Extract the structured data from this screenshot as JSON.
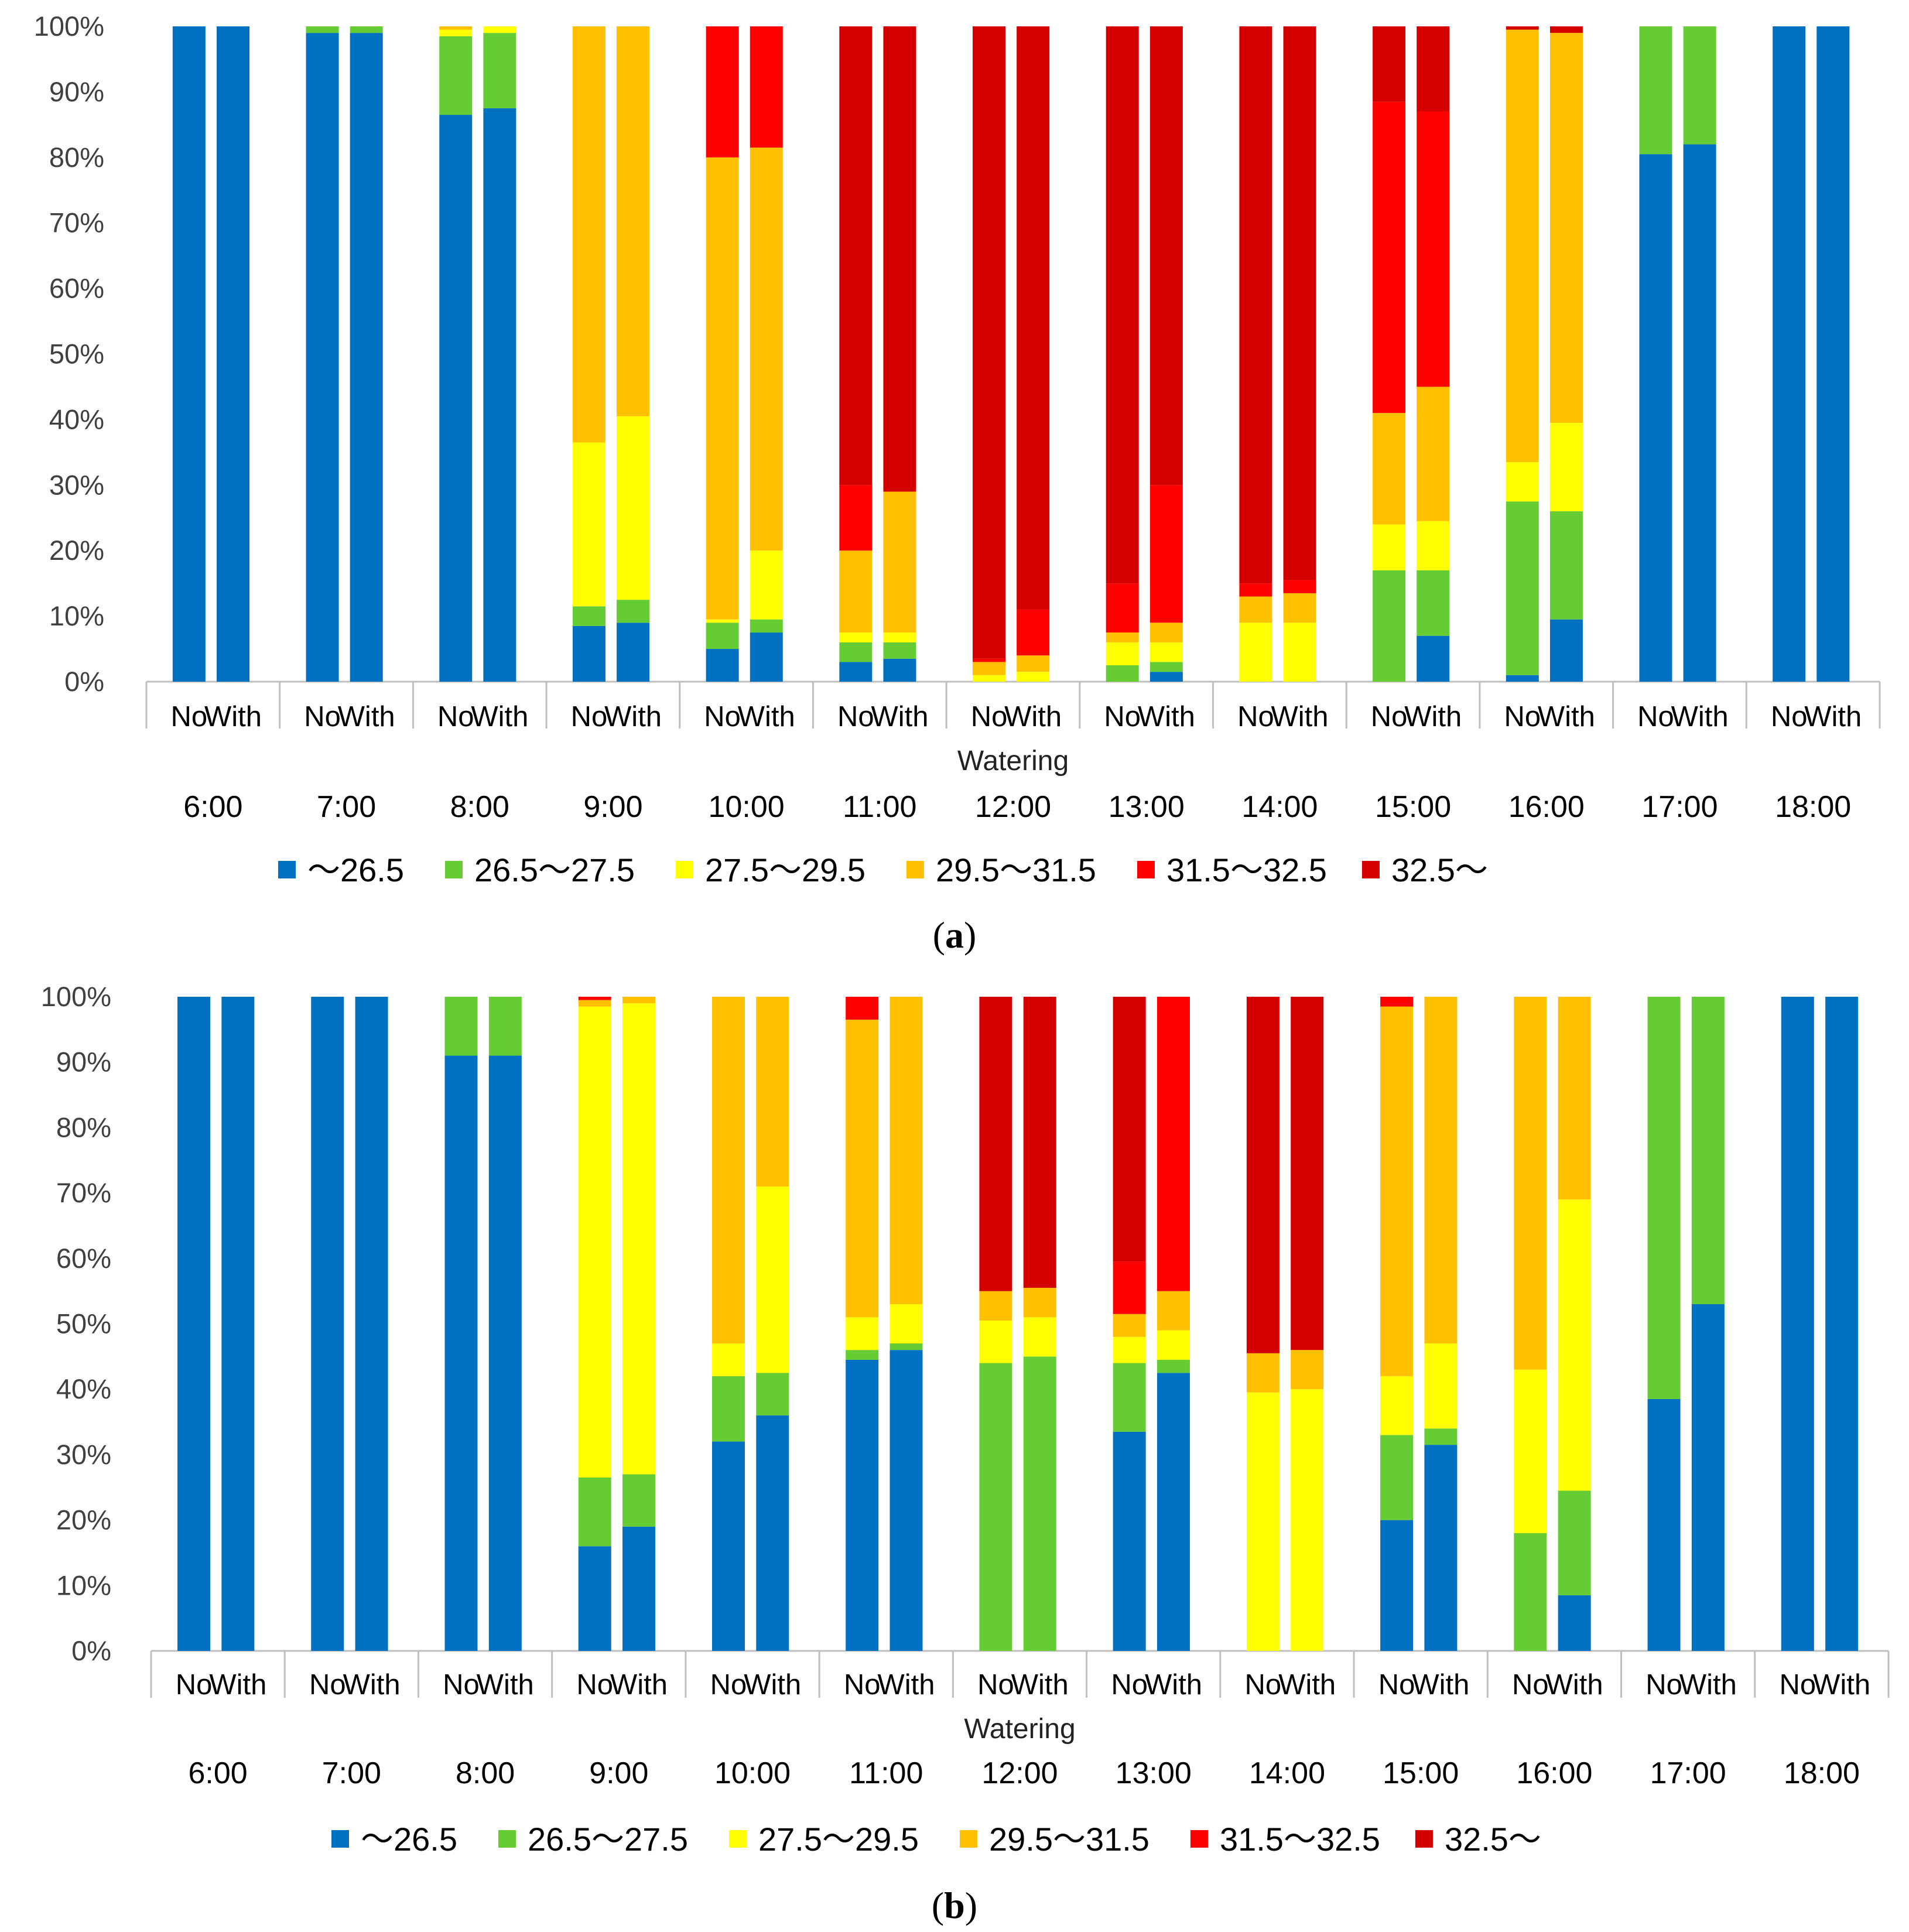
{
  "figure": {
    "x_title": "Watering",
    "bar_labels": [
      "No",
      "With"
    ]
  },
  "legend_items": [
    {
      "label": "～26.5",
      "color": "#0070c0"
    },
    {
      "label": "26.5～27.5",
      "color": "#66cc33"
    },
    {
      "label": "27.5～29.5",
      "color": "#ffff00"
    },
    {
      "label": "29.5～31.5",
      "color": "#ffc000"
    },
    {
      "label": "31.5～32.5",
      "color": "#ff0000"
    },
    {
      "label": "32.5～",
      "color": "#d40000"
    }
  ],
  "chart_data": [
    {
      "type": "bar",
      "stacked": true,
      "panel_label": "a",
      "xlabel": "Watering",
      "ylabel": "",
      "ylim": [
        0,
        100
      ],
      "y_ticks": [
        "0%",
        "10%",
        "20%",
        "30%",
        "40%",
        "50%",
        "60%",
        "70%",
        "80%",
        "90%",
        "100%"
      ],
      "groups": [
        "6:00",
        "7:00",
        "8:00",
        "9:00",
        "10:00",
        "11:00",
        "12:00",
        "13:00",
        "14:00",
        "15:00",
        "16:00",
        "17:00",
        "18:00"
      ],
      "bars_per_group": [
        "No",
        "With"
      ],
      "series_names": [
        "～26.5",
        "26.5～27.5",
        "27.5～29.5",
        "29.5～31.5",
        "31.5～32.5",
        "32.5～"
      ],
      "values": [
        [
          [
            100,
            0,
            0,
            0,
            0,
            0
          ],
          [
            100,
            0,
            0,
            0,
            0,
            0
          ]
        ],
        [
          [
            99,
            1,
            0,
            0,
            0,
            0
          ],
          [
            99,
            1,
            0,
            0,
            0,
            0
          ]
        ],
        [
          [
            86.5,
            12,
            1,
            0.5,
            0,
            0
          ],
          [
            87.5,
            11.5,
            1,
            0,
            0,
            0
          ]
        ],
        [
          [
            8.5,
            3,
            25,
            63.5,
            0,
            0
          ],
          [
            9,
            3.5,
            28,
            59.5,
            0,
            0
          ]
        ],
        [
          [
            5,
            4,
            0.5,
            70.5,
            20,
            0
          ],
          [
            7.5,
            2,
            10.5,
            61.5,
            18.5,
            0
          ]
        ],
        [
          [
            3,
            3,
            1.5,
            12.5,
            10,
            70
          ],
          [
            3.5,
            2.5,
            1.5,
            21.5,
            0,
            71
          ]
        ],
        [
          [
            0,
            0,
            1,
            2,
            0.5,
            96.5
          ],
          [
            0,
            0,
            1.5,
            2.5,
            7,
            89
          ]
        ],
        [
          [
            0,
            2.5,
            3.5,
            1.5,
            7.5,
            85
          ],
          [
            1.5,
            1.5,
            3,
            3,
            21,
            70
          ]
        ],
        [
          [
            0,
            0,
            9,
            4,
            2,
            85
          ],
          [
            0,
            0,
            9,
            4.5,
            2,
            84.5
          ]
        ],
        [
          [
            0,
            17,
            7,
            17,
            47.5,
            11.5
          ],
          [
            7,
            10,
            7.5,
            20.5,
            42,
            13
          ]
        ],
        [
          [
            1,
            26.5,
            6,
            66,
            0,
            0.5
          ],
          [
            9.5,
            16.5,
            13.5,
            59.5,
            0,
            1
          ]
        ],
        [
          [
            80.5,
            19.5,
            0,
            0,
            0,
            0
          ],
          [
            82,
            18,
            0,
            0,
            0,
            0
          ]
        ],
        [
          [
            100,
            0,
            0,
            0,
            0,
            0
          ],
          [
            100,
            0,
            0,
            0,
            0,
            0
          ]
        ]
      ]
    },
    {
      "type": "bar",
      "stacked": true,
      "panel_label": "b",
      "xlabel": "Watering",
      "ylabel": "",
      "ylim": [
        0,
        100
      ],
      "y_ticks": [
        "0%",
        "10%",
        "20%",
        "30%",
        "40%",
        "50%",
        "60%",
        "70%",
        "80%",
        "90%",
        "100%"
      ],
      "groups": [
        "6:00",
        "7:00",
        "8:00",
        "9:00",
        "10:00",
        "11:00",
        "12:00",
        "13:00",
        "14:00",
        "15:00",
        "16:00",
        "17:00",
        "18:00"
      ],
      "bars_per_group": [
        "No",
        "With"
      ],
      "series_names": [
        "～26.5",
        "26.5～27.5",
        "27.5～29.5",
        "29.5～31.5",
        "31.5～32.5",
        "32.5～"
      ],
      "values": [
        [
          [
            100,
            0,
            0,
            0,
            0,
            0
          ],
          [
            100,
            0,
            0,
            0,
            0,
            0
          ]
        ],
        [
          [
            100,
            0,
            0,
            0,
            0,
            0
          ],
          [
            100,
            0,
            0,
            0,
            0,
            0
          ]
        ],
        [
          [
            91,
            9,
            0,
            0,
            0,
            0
          ],
          [
            91,
            9,
            0,
            0,
            0,
            0
          ]
        ],
        [
          [
            16,
            10.5,
            72,
            1,
            0.5,
            0
          ],
          [
            19,
            8,
            72,
            1,
            0,
            0
          ]
        ],
        [
          [
            32,
            10,
            5,
            53,
            0,
            0
          ],
          [
            36,
            6.5,
            28.5,
            29,
            0,
            0
          ]
        ],
        [
          [
            44.5,
            1.5,
            5,
            45.5,
            3.5,
            0
          ],
          [
            46,
            1,
            6,
            47,
            0,
            0
          ]
        ],
        [
          [
            0,
            44,
            6.5,
            4.5,
            0,
            45
          ],
          [
            0,
            45,
            6,
            4.5,
            0,
            44.5
          ]
        ],
        [
          [
            33.5,
            10.5,
            4,
            3.5,
            8,
            40.5
          ],
          [
            42.5,
            2,
            4.5,
            6,
            45,
            0
          ]
        ],
        [
          [
            0,
            0,
            39.5,
            6,
            0,
            54.5
          ],
          [
            0,
            0,
            40,
            6,
            0,
            54
          ]
        ],
        [
          [
            20,
            13,
            9,
            56.5,
            1.5,
            0
          ],
          [
            31.5,
            2.5,
            13,
            53,
            0,
            0
          ]
        ],
        [
          [
            0,
            18,
            25,
            57,
            0,
            0
          ],
          [
            8.5,
            16,
            44.5,
            31,
            0,
            0
          ]
        ],
        [
          [
            38.5,
            61.5,
            0,
            0,
            0,
            0
          ],
          [
            53,
            47,
            0,
            0,
            0,
            0
          ]
        ],
        [
          [
            100,
            0,
            0,
            0,
            0,
            0
          ],
          [
            100,
            0,
            0,
            0,
            0,
            0
          ]
        ]
      ]
    }
  ]
}
